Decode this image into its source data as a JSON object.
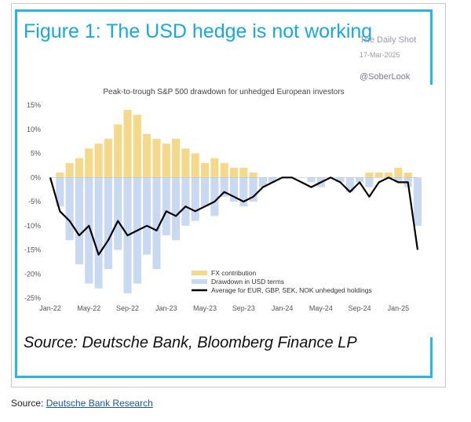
{
  "figure_title": "Figure 1: The USD hedge is not working",
  "watermark": {
    "name": "The Daily Shot",
    "date": "17-Mar-2025",
    "handle": "@SoberLook"
  },
  "source_caption": "Source: Deutsche Bank, Bloomberg Finance LP",
  "footer": {
    "label": "Source:",
    "link_text": "Deutsche Bank Research"
  },
  "colors": {
    "accent": "#29b6e6",
    "fx": "#f5d98a",
    "usd": "#c9d9f2",
    "avg": "#000000"
  },
  "chart_data": {
    "type": "area",
    "title": "Peak-to-trough S&P 500 drawdown for unhedged European investors",
    "xlabel": "",
    "ylabel": "",
    "x_ticks": [
      "Jan-22",
      "May-22",
      "Sep-22",
      "Jan-23",
      "May-23",
      "Sep-23",
      "Jan-24",
      "May-24",
      "Sep-24",
      "Jan-25"
    ],
    "y_ticks": [
      "15%",
      "10%",
      "5%",
      "0%",
      "-5%",
      "-10%",
      "-15%",
      "-20%",
      "-25%"
    ],
    "ylim": [
      -25,
      15
    ],
    "legend_position": "bottom-center",
    "grid": false,
    "x": [
      "Jan-22",
      "Feb-22",
      "Mar-22",
      "Apr-22",
      "May-22",
      "Jun-22",
      "Jul-22",
      "Aug-22",
      "Sep-22",
      "Oct-22",
      "Nov-22",
      "Dec-22",
      "Jan-23",
      "Feb-23",
      "Mar-23",
      "Apr-23",
      "May-23",
      "Jun-23",
      "Jul-23",
      "Aug-23",
      "Sep-23",
      "Oct-23",
      "Nov-23",
      "Dec-23",
      "Jan-24",
      "Feb-24",
      "Mar-24",
      "Apr-24",
      "May-24",
      "Jun-24",
      "Jul-24",
      "Aug-24",
      "Sep-24",
      "Oct-24",
      "Nov-24",
      "Dec-24",
      "Jan-25",
      "Feb-25",
      "Mar-25"
    ],
    "series": [
      {
        "name": "FX contribution",
        "values": [
          0,
          1,
          3,
          4,
          6,
          7,
          8,
          11,
          14,
          13,
          9,
          8,
          7,
          8,
          6,
          5,
          3,
          4,
          3,
          2,
          2,
          1,
          0,
          0,
          0,
          0,
          0,
          0,
          0,
          0,
          0,
          0,
          0,
          1,
          1,
          1,
          2,
          1,
          0
        ]
      },
      {
        "name": "Drawdown in USD terms",
        "values": [
          0,
          -6,
          -13,
          -18,
          -22,
          -23,
          -19,
          -15,
          -24,
          -22,
          -16,
          -19,
          -12,
          -13,
          -10,
          -9,
          -6,
          -8,
          -4,
          -5,
          -6,
          -5,
          -2,
          -1,
          0,
          0,
          0,
          -1,
          -2,
          0,
          -1,
          -3,
          -1,
          -2,
          0,
          0,
          -1,
          -2,
          -10
        ]
      },
      {
        "name": "Average for EUR, GBP, SEK, NOK unhedged holdings",
        "values": [
          0,
          -7,
          -9,
          -12,
          -10,
          -16,
          -13,
          -9,
          -12,
          -11,
          -10,
          -11,
          -7,
          -8,
          -6,
          -7,
          -6,
          -5,
          -3,
          -4,
          -5,
          -4,
          -2,
          -1,
          0,
          0,
          -1,
          -2,
          -1,
          0,
          -1,
          -3,
          -1,
          -4,
          -1,
          0,
          -1,
          -1,
          -15
        ]
      }
    ]
  }
}
